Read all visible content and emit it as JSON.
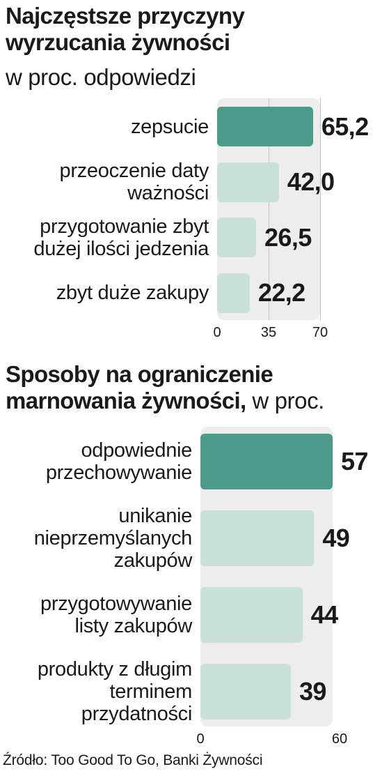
{
  "chart_data": [
    {
      "type": "bar",
      "orientation": "horizontal",
      "title": "Najczęstsze przyczyny wyrzucania żywności",
      "subtitle": "w proc. odpowiedzi",
      "categories": [
        "zepsucie",
        "przeoczenie daty\nważności",
        "przygotowanie zbyt\ndużej ilości jedzenia",
        "zbyt duże zakupy"
      ],
      "values": [
        65.2,
        42.0,
        26.5,
        22.2
      ],
      "value_labels": [
        "65,2",
        "42,0",
        "26,5",
        "22,2"
      ],
      "xlim": [
        0,
        70
      ],
      "ticks": [
        "0",
        "35",
        "70"
      ],
      "grid": true,
      "colors": {
        "highlight": "#4b9a8a",
        "bar": "#c9e1d9",
        "panel": "#ededed"
      }
    },
    {
      "type": "bar",
      "orientation": "horizontal",
      "title": "Sposoby na ograniczenie marnowania żywności,",
      "subtitle": " w proc.",
      "categories": [
        "odpowiednie\nprzechowywanie",
        "unikanie\nnieprzemyślanych\nzakupów",
        "przygotowywanie\nlisty zakupów",
        "produkty z długim\nterminem\nprzydatności"
      ],
      "values": [
        57,
        49,
        44,
        39
      ],
      "value_labels": [
        "57",
        "49",
        "44",
        "39"
      ],
      "xlim": [
        0,
        60
      ],
      "ticks": [
        "0",
        "60"
      ],
      "grid": false,
      "colors": {
        "highlight": "#4b9a8a",
        "bar": "#c9e1d9",
        "panel": "#ededed"
      }
    }
  ],
  "source": "Źródło: Too Good To Go, Banki Żywności"
}
